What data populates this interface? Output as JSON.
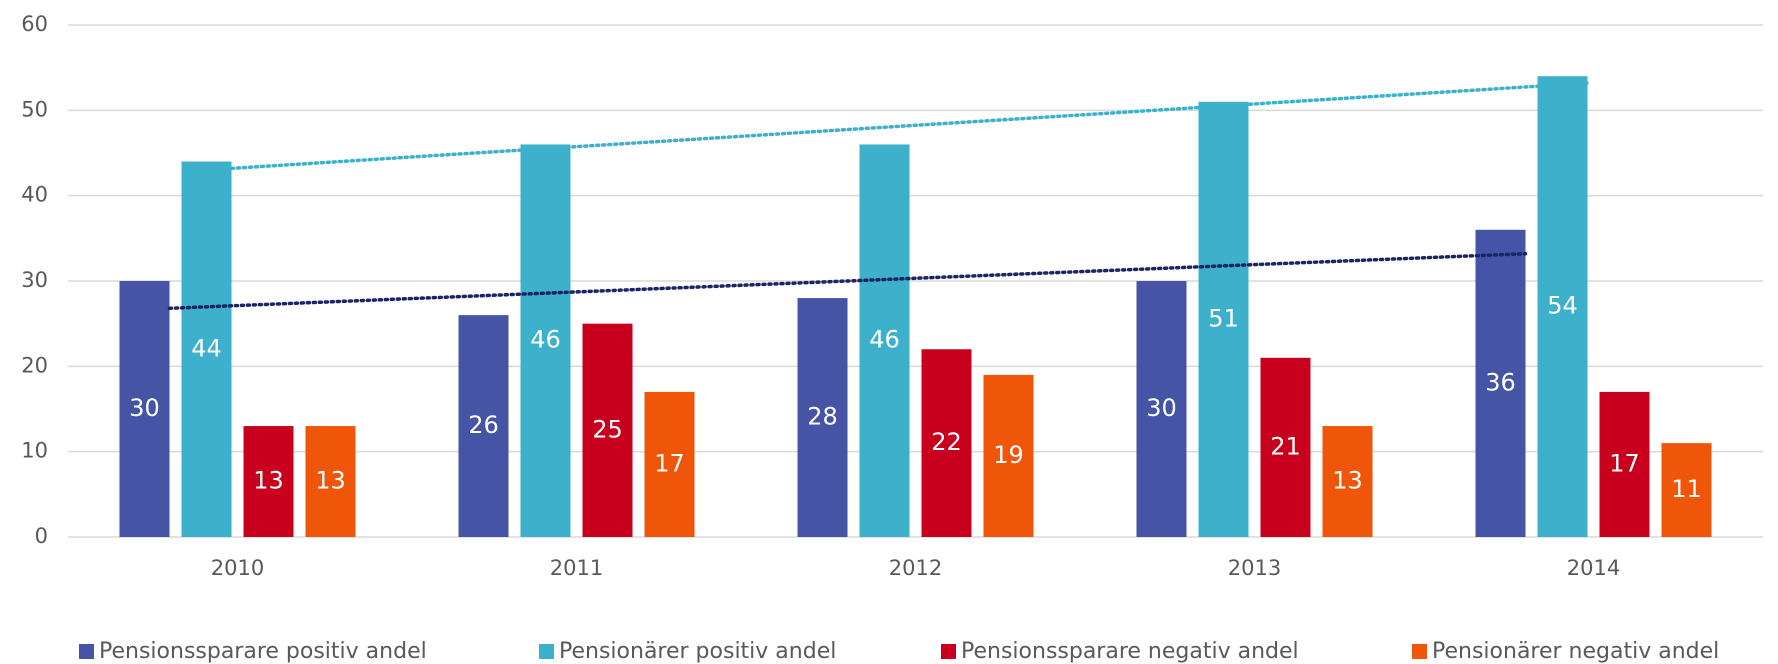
{
  "chart_data": {
    "type": "bar",
    "categories": [
      "2010",
      "2011",
      "2012",
      "2013",
      "2014"
    ],
    "series": [
      {
        "name": "Pensionssparare positiv andel",
        "color": "#4654a6",
        "values": [
          30,
          26,
          28,
          30,
          36
        ],
        "trendline": true,
        "trendline_color": "#1b2566"
      },
      {
        "name": "Pensionärer positiv andel",
        "color": "#3db1cc",
        "values": [
          44,
          46,
          46,
          51,
          54
        ],
        "trendline": true,
        "trendline_color": "#3db1cc"
      },
      {
        "name": "Pensionssparare negativ andel",
        "color": "#c8001e",
        "values": [
          13,
          25,
          22,
          21,
          17
        ]
      },
      {
        "name": "Pensionärer negativ andel",
        "color": "#f0560a",
        "values": [
          13,
          17,
          19,
          13,
          11
        ]
      }
    ],
    "ylim": [
      0,
      60
    ],
    "yticks": [
      0,
      10,
      20,
      30,
      40,
      50,
      60
    ],
    "grid": true,
    "legend": "bottom"
  }
}
